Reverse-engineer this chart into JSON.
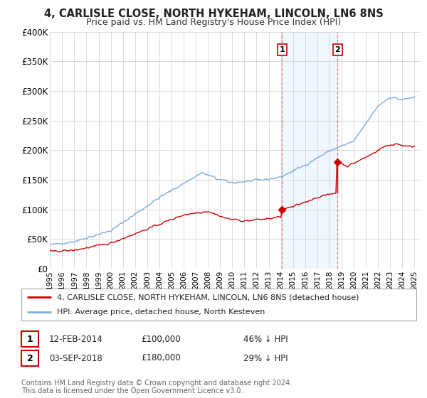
{
  "title": "4, CARLISLE CLOSE, NORTH HYKEHAM, LINCOLN, LN6 8NS",
  "subtitle": "Price paid vs. HM Land Registry's House Price Index (HPI)",
  "ylim": [
    0,
    400000
  ],
  "yticks": [
    0,
    50000,
    100000,
    150000,
    200000,
    250000,
    300000,
    350000,
    400000
  ],
  "ytick_labels": [
    "£0",
    "£50K",
    "£100K",
    "£150K",
    "£200K",
    "£250K",
    "£300K",
    "£350K",
    "£400K"
  ],
  "xlim_start": 1995.0,
  "xlim_end": 2025.5,
  "sale1_x": 2014.1,
  "sale1_y": 100000,
  "sale2_x": 2018.67,
  "sale2_y": 180000,
  "sale1_label": "1",
  "sale2_label": "2",
  "sale1_date": "12-FEB-2014",
  "sale1_price": "£100,000",
  "sale1_hpi": "46% ↓ HPI",
  "sale2_date": "03-SEP-2018",
  "sale2_price": "£180,000",
  "sale2_hpi": "29% ↓ HPI",
  "red_line_color": "#cc0000",
  "blue_line_color": "#7aaadd",
  "shade_color": "#ddeeff",
  "shade_alpha": 0.45,
  "vline_color": "#dd8888",
  "legend1_label": "4, CARLISLE CLOSE, NORTH HYKEHAM, LINCOLN, LN6 8NS (detached house)",
  "legend2_label": "HPI: Average price, detached house, North Kesteven",
  "footer1": "Contains HM Land Registry data © Crown copyright and database right 2024.",
  "footer2": "This data is licensed under the Open Government Licence v3.0.",
  "background_color": "#ffffff",
  "grid_color": "#cccccc"
}
